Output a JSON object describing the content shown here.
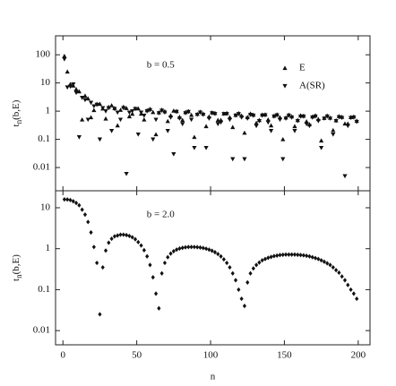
{
  "chart_data": [
    {
      "type": "scatter",
      "log_y": true,
      "annotation": "b = 0.5",
      "legend": "upper right",
      "ylabel": {
        "base": "t",
        "sub": "n",
        "rest": "(b,E)"
      },
      "xlim": [
        -5,
        208
      ],
      "xticks": [
        0,
        50,
        100,
        150,
        200
      ],
      "ylim": [
        0.0015,
        470
      ],
      "yticks": [
        0.01,
        0.1,
        1,
        10,
        100
      ],
      "x": [
        1,
        3,
        5,
        7,
        9,
        11,
        13,
        15,
        17,
        19,
        21,
        23,
        25,
        27,
        29,
        31,
        33,
        35,
        37,
        39,
        41,
        43,
        45,
        47,
        49,
        51,
        53,
        55,
        57,
        59,
        61,
        63,
        65,
        67,
        69,
        71,
        73,
        75,
        77,
        79,
        81,
        83,
        85,
        87,
        89,
        91,
        93,
        95,
        97,
        99,
        101,
        103,
        105,
        107,
        109,
        111,
        113,
        115,
        117,
        119,
        121,
        123,
        125,
        127,
        129,
        131,
        133,
        135,
        137,
        139,
        141,
        143,
        145,
        147,
        149,
        151,
        153,
        155,
        157,
        159,
        161,
        163,
        165,
        167,
        169,
        171,
        173,
        175,
        177,
        179,
        181,
        183,
        185,
        187,
        189,
        191,
        193,
        195,
        197,
        199
      ],
      "series": [
        {
          "name": "E",
          "marker": "triangle-up",
          "color": "#111111",
          "values": [
            90,
            25,
            9,
            8,
            6,
            5,
            0.5,
            3.5,
            2.8,
            0.6,
            1.08,
            1.79,
            1.8,
            1.23,
            0.54,
            1.41,
            1.6,
            1.28,
            0.31,
            1.1,
            1.42,
            1.28,
            0.65,
            0.8,
            1.25,
            1.24,
            0.81,
            0.5,
            1.07,
            1.19,
            0.92,
            0.15,
            0.9,
            1.12,
            0.98,
            0.44,
            0.7,
            1.03,
            1.0,
            0.62,
            0.48,
            0.92,
            0.99,
            0.73,
            0.12,
            0.79,
            0.95,
            0.81,
            0.29,
            0.64,
            0.9,
            0.85,
            0.48,
            0.48,
            0.82,
            0.85,
            0.6,
            0.27,
            0.73,
            0.84,
            0.69,
            0.17,
            0.61,
            0.81,
            0.74,
            0.38,
            0.48,
            0.75,
            0.76,
            0.5,
            0.31,
            0.68,
            0.76,
            0.6,
            0.1,
            0.59,
            0.74,
            0.65,
            0.29,
            0.48,
            0.7,
            0.68,
            0.43,
            0.34,
            0.64,
            0.7,
            0.52,
            0.09,
            0.57,
            0.69,
            0.58,
            0.21,
            0.47,
            0.66,
            0.62,
            0.36,
            0.36,
            0.61,
            0.64,
            0.45
          ]
        },
        {
          "name": "A(SR)",
          "marker": "triangle-down",
          "color": "#111111",
          "values": [
            70,
            7,
            7.5,
            9,
            4.5,
            0.12,
            3,
            2.5,
            0.5,
            2,
            1.5,
            1.7,
            0.1,
            1.3,
            1.0,
            1.3,
            0.2,
            1.2,
            0.9,
            0.5,
            1.3,
            0.006,
            0.9,
            1.0,
            1.2,
            0.15,
            0.9,
            0.7,
            1.0,
            1.1,
            0.1,
            0.5,
            0.85,
            1.05,
            0.9,
            0.2,
            0.6,
            0.03,
            0.95,
            0.55,
            0.35,
            0.85,
            0.95,
            0.5,
            0.05,
            0.75,
            0.9,
            0.75,
            0.05,
            0.55,
            0.85,
            0.8,
            0.35,
            0.4,
            0.8,
            0.8,
            0.5,
            0.02,
            0.7,
            0.8,
            0.6,
            0.02,
            0.55,
            0.75,
            0.7,
            0.3,
            0.45,
            0.7,
            0.72,
            0.4,
            0.2,
            0.65,
            0.72,
            0.5,
            0.02,
            0.55,
            0.7,
            0.6,
            0.2,
            0.45,
            0.65,
            0.65,
            0.35,
            0.3,
            0.6,
            0.65,
            0.45,
            0.05,
            0.55,
            0.65,
            0.55,
            0.15,
            0.45,
            0.62,
            0.58,
            0.005,
            0.3,
            0.58,
            0.6,
            0.42
          ]
        }
      ]
    },
    {
      "type": "scatter",
      "log_y": true,
      "annotation": "b = 2.0",
      "ylabel": {
        "base": "t",
        "sub": "n",
        "rest": "(b,E)"
      },
      "xlabel": "n",
      "xlim": [
        -5,
        208
      ],
      "xticks": [
        0,
        50,
        100,
        150,
        200
      ],
      "ylim": [
        0.0045,
        26
      ],
      "yticks": [
        0.01,
        0.1,
        1,
        10
      ],
      "x": [
        1,
        3,
        5,
        7,
        9,
        11,
        13,
        15,
        17,
        19,
        21,
        23,
        25,
        27,
        29,
        31,
        33,
        35,
        37,
        39,
        41,
        43,
        45,
        47,
        49,
        51,
        53,
        55,
        57,
        59,
        61,
        63,
        65,
        67,
        69,
        71,
        73,
        75,
        77,
        79,
        81,
        83,
        85,
        87,
        89,
        91,
        93,
        95,
        97,
        99,
        101,
        103,
        105,
        107,
        109,
        111,
        113,
        115,
        117,
        119,
        121,
        123,
        125,
        127,
        129,
        131,
        133,
        135,
        137,
        139,
        141,
        143,
        145,
        147,
        149,
        151,
        153,
        155,
        157,
        159,
        161,
        163,
        165,
        167,
        169,
        171,
        173,
        175,
        177,
        179,
        181,
        183,
        185,
        187,
        189,
        191,
        193,
        195,
        197,
        199
      ],
      "series": [
        {
          "marker": "diamond",
          "color": "#111111",
          "values": [
            16,
            15.9,
            15.4,
            14.4,
            13.1,
            11.5,
            9,
            6.8,
            4.5,
            2.5,
            1.1,
            0.45,
            0.025,
            0.35,
            0.9,
            1.4,
            1.75,
            2.0,
            2.1,
            2.2,
            2.2,
            2.15,
            2.05,
            1.9,
            1.7,
            1.45,
            1.2,
            0.92,
            0.65,
            0.4,
            0.2,
            0.08,
            0.035,
            0.25,
            0.45,
            0.62,
            0.76,
            0.87,
            0.95,
            1.01,
            1.05,
            1.08,
            1.1,
            1.1,
            1.1,
            1.09,
            1.07,
            1.04,
            1.0,
            0.95,
            0.89,
            0.82,
            0.74,
            0.65,
            0.55,
            0.45,
            0.35,
            0.25,
            0.17,
            0.1,
            0.06,
            0.04,
            0.15,
            0.25,
            0.33,
            0.4,
            0.46,
            0.52,
            0.56,
            0.6,
            0.63,
            0.66,
            0.68,
            0.7,
            0.71,
            0.72,
            0.72,
            0.72,
            0.72,
            0.71,
            0.7,
            0.69,
            0.67,
            0.65,
            0.62,
            0.59,
            0.56,
            0.52,
            0.48,
            0.44,
            0.4,
            0.35,
            0.3,
            0.26,
            0.21,
            0.17,
            0.13,
            0.1,
            0.08,
            0.06
          ]
        }
      ]
    }
  ]
}
